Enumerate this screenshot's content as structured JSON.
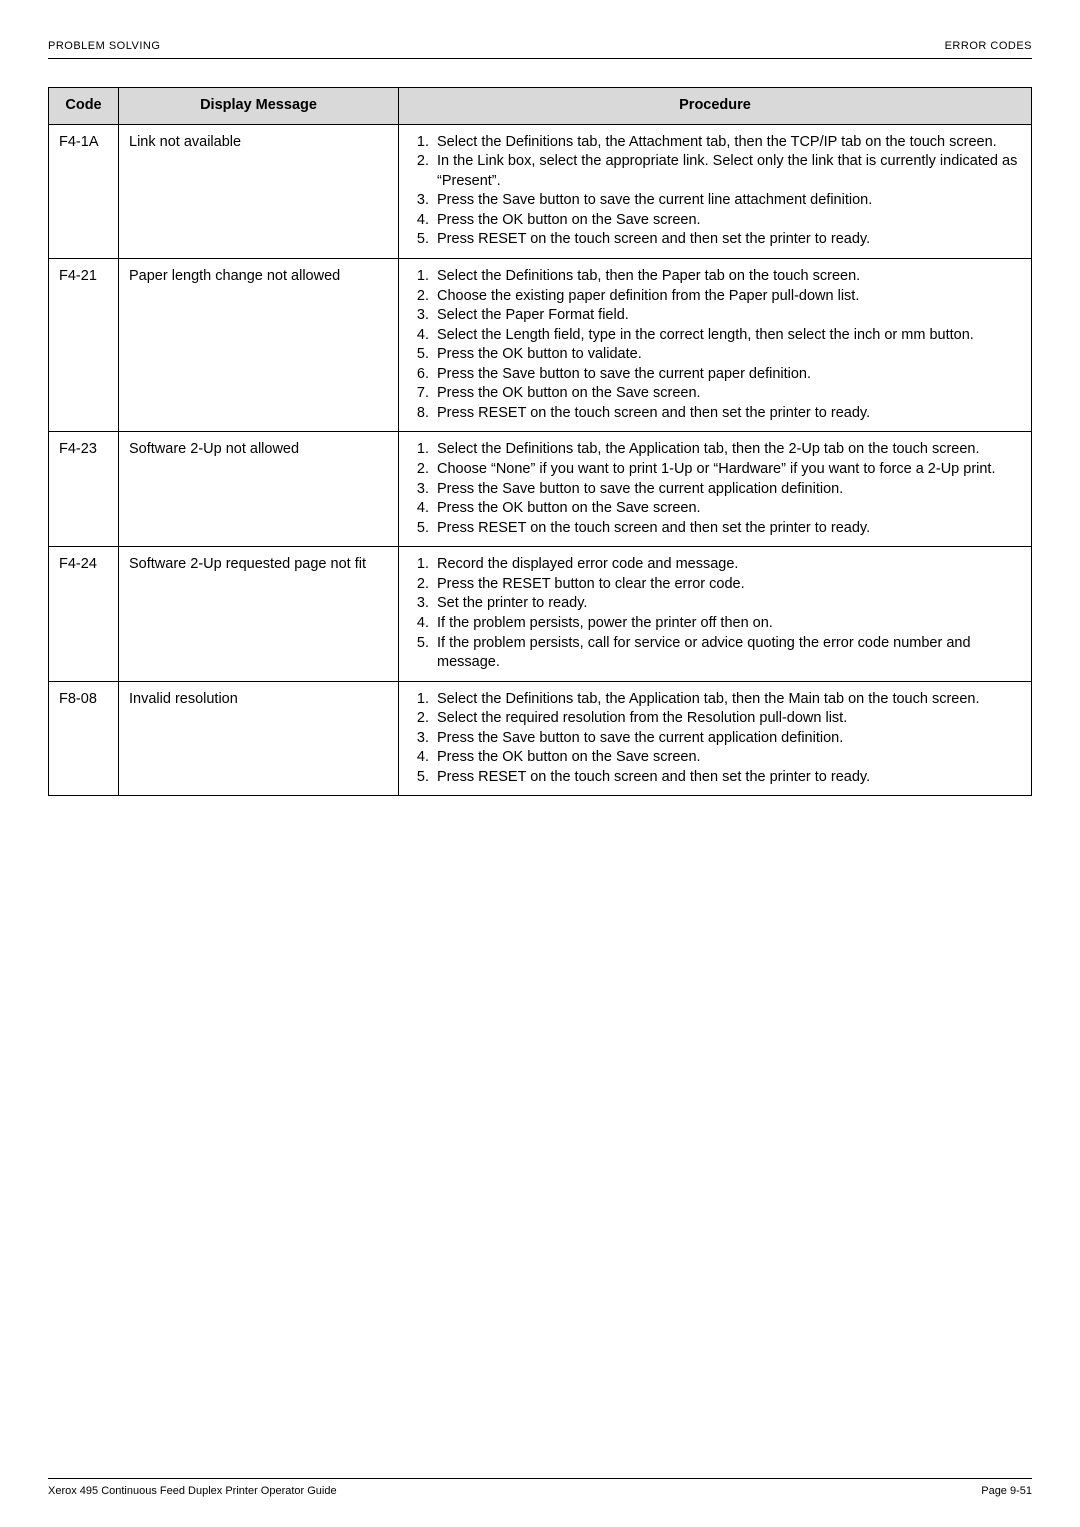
{
  "header": {
    "left": "PROBLEM SOLVING",
    "right": "ERROR CODES"
  },
  "columns": {
    "code": "Code",
    "message": "Display Message",
    "procedure": "Procedure"
  },
  "rows": [
    {
      "code": "F4-1A",
      "message": "Link not available",
      "steps": [
        "Select the Definitions tab, the Attachment tab, then the TCP/IP tab on the touch screen.",
        "In the Link box, select the appropriate link. Select only the link that is currently indicated as “Present”.",
        "Press the Save button to save the current line attachment definition.",
        "Press the OK button on the Save screen.",
        "Press RESET on the touch screen and then set the printer to ready."
      ]
    },
    {
      "code": "F4-21",
      "message": "Paper length change not allowed",
      "steps": [
        "Select the Definitions tab, then the Paper tab on the touch screen.",
        "Choose the existing paper definition from the Paper pull-down list.",
        "Select the Paper Format field.",
        "Select the Length field, type in the correct length, then select the inch or mm button.",
        "Press the OK button to validate.",
        "Press the Save button to save the current paper definition.",
        "Press the OK button on the Save screen.",
        "Press RESET on the touch screen and then set the printer to ready."
      ]
    },
    {
      "code": "F4-23",
      "message": "Software 2-Up not allowed",
      "steps": [
        "Select the Definitions tab, the Application tab, then the 2-Up tab on the touch screen.",
        "Choose “None” if you want to print 1-Up or “Hardware” if you want to force a 2-Up print.",
        "Press the Save button to save the current application definition.",
        "Press the OK button on the Save screen.",
        "Press RESET on the touch screen and then set the printer to ready."
      ]
    },
    {
      "code": "F4-24",
      "message": "Software 2-Up requested page not fit",
      "steps": [
        "Record the displayed error code and message.",
        "Press the RESET button to clear the error code.",
        "Set the printer to ready.",
        "If the problem persists, power the printer off then on.",
        "If the problem persists, call for service or advice quoting the error code number and message."
      ]
    },
    {
      "code": "F8-08",
      "message": "Invalid resolution",
      "steps": [
        "Select the Definitions tab, the Application tab, then the Main tab on the touch screen.",
        "Select the required resolution from the Resolution pull-down list.",
        "Press the Save button to save the current application definition.",
        "Press the OK button on the Save screen.",
        "Press RESET on the touch screen and then set the printer to ready."
      ]
    }
  ],
  "footer": {
    "left": "Xerox 495 Continuous Feed Duplex Printer Operator Guide",
    "right": "Page 9-51"
  }
}
